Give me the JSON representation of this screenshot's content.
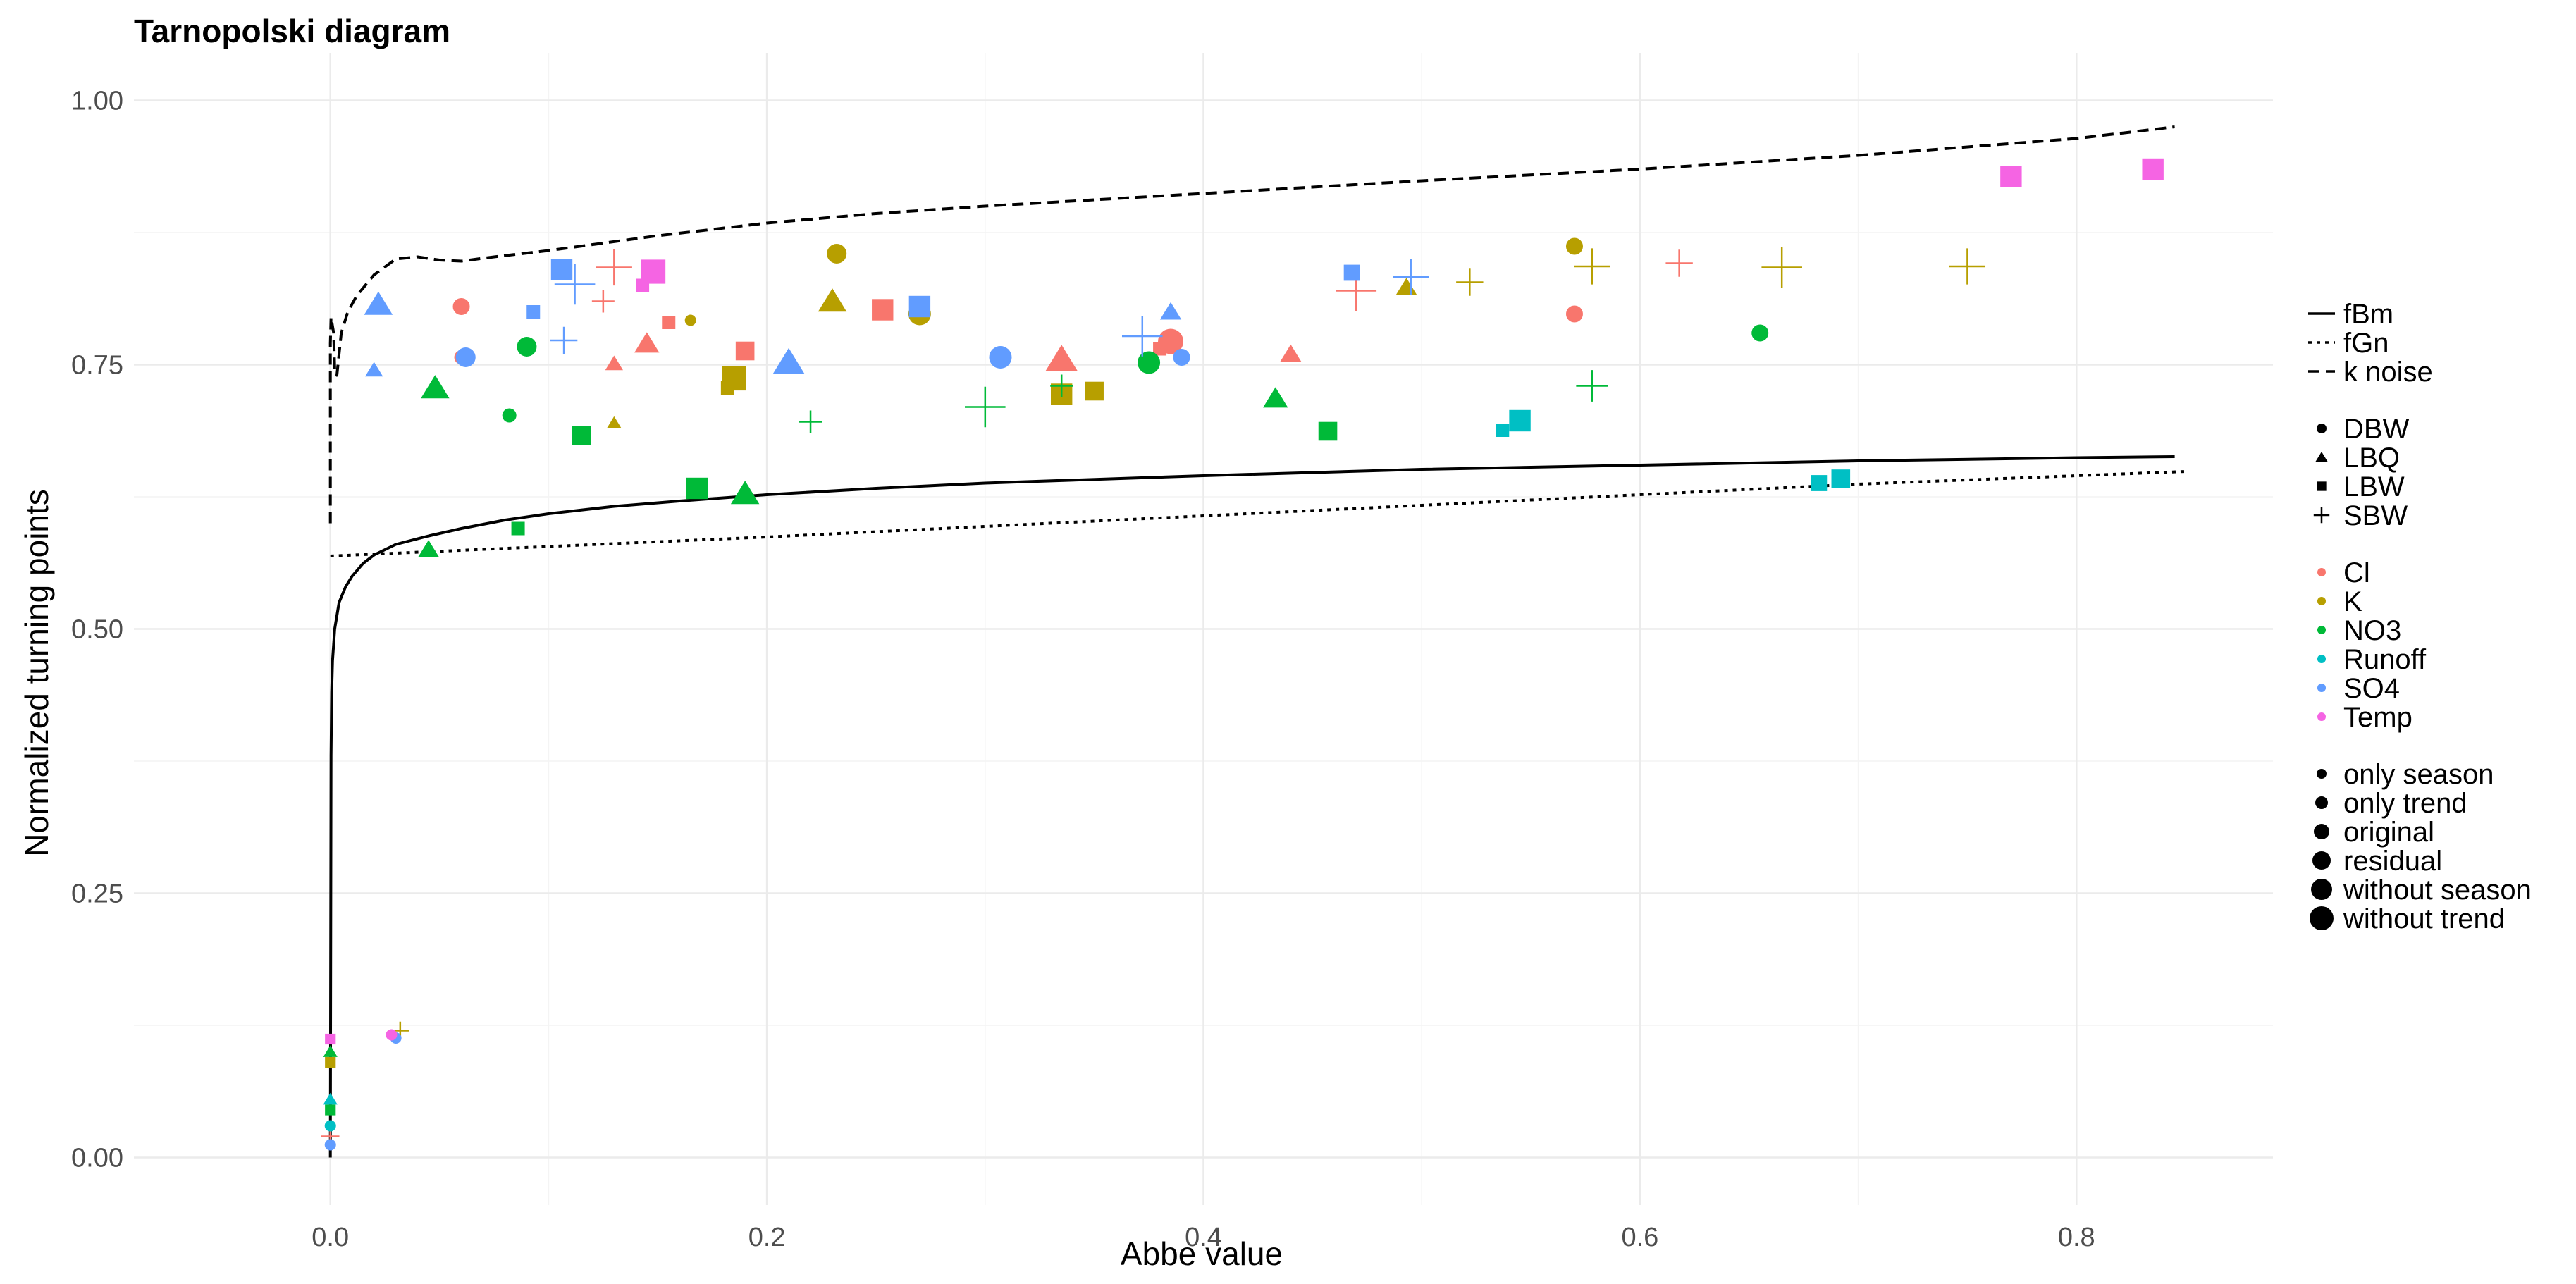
{
  "chart_data": {
    "type": "scatter",
    "title": "Tarnopolski diagram",
    "xlabel": "Abbe value",
    "ylabel": "Normalized turning points",
    "xlim": [
      -0.09,
      0.89
    ],
    "ylim": [
      -0.045,
      1.045
    ],
    "x_ticks": [
      0.0,
      0.2,
      0.4,
      0.6,
      0.8
    ],
    "x_tick_labels": [
      "0.0",
      "0.2",
      "0.4",
      "0.6",
      "0.8"
    ],
    "y_ticks": [
      0.0,
      0.25,
      0.5,
      0.75,
      1.0
    ],
    "y_tick_labels": [
      "0.00",
      "0.25",
      "0.50",
      "0.75",
      "1.00"
    ],
    "grid": true,
    "legend_position": "right",
    "colors": {
      "Cl": "#F8766D",
      "K": "#B79F00",
      "NO3": "#00BA38",
      "Runoff": "#00BFC4",
      "SO4": "#619CFF",
      "Temp": "#F564E3"
    },
    "shape_names": {
      "DBW": "circle",
      "LBQ": "triangle",
      "LBW": "square",
      "SBW": "plus"
    },
    "legend": {
      "linetype": [
        "fBm",
        "fGn",
        "k noise"
      ],
      "shape": [
        "DBW",
        "LBQ",
        "LBW",
        "SBW"
      ],
      "color": [
        "Cl",
        "K",
        "NO3",
        "Runoff",
        "SO4",
        "Temp"
      ],
      "size": [
        "only season",
        "only trend",
        "original",
        "residual",
        "without season",
        "without trend"
      ]
    },
    "reference_lines": [
      {
        "name": "fBm",
        "dash": "solid",
        "x": [
          0.0,
          0.0003,
          0.0006,
          0.001,
          0.002,
          0.004,
          0.007,
          0.01,
          0.015,
          0.02,
          0.03,
          0.045,
          0.06,
          0.08,
          0.1,
          0.13,
          0.16,
          0.2,
          0.25,
          0.3,
          0.4,
          0.5,
          0.6,
          0.7,
          0.8,
          0.845
        ],
        "y": [
          0.0,
          0.38,
          0.44,
          0.47,
          0.5,
          0.525,
          0.54,
          0.55,
          0.562,
          0.57,
          0.58,
          0.588,
          0.595,
          0.603,
          0.609,
          0.616,
          0.621,
          0.627,
          0.633,
          0.638,
          0.645,
          0.651,
          0.655,
          0.659,
          0.662,
          0.663
        ]
      },
      {
        "name": "fGn",
        "dash": "dotted",
        "x": [
          0.0,
          0.1,
          0.2,
          0.3,
          0.4,
          0.5,
          0.6,
          0.7,
          0.8,
          0.85
        ],
        "y": [
          0.569,
          0.578,
          0.587,
          0.597,
          0.607,
          0.617,
          0.627,
          0.637,
          0.645,
          0.649
        ]
      },
      {
        "name": "k noise",
        "dash": "dashed",
        "x": [
          0.0,
          0.0,
          0.0003,
          0.0015,
          0.002,
          0.003,
          0.005,
          0.008,
          0.012,
          0.02,
          0.03,
          0.04,
          0.05,
          0.06,
          0.075,
          0.1,
          0.15,
          0.2,
          0.25,
          0.3,
          0.4,
          0.5,
          0.6,
          0.7,
          0.8,
          0.845
        ],
        "y": [
          0.6,
          0.77,
          0.795,
          0.78,
          0.745,
          0.74,
          0.78,
          0.8,
          0.815,
          0.835,
          0.85,
          0.852,
          0.849,
          0.848,
          0.852,
          0.858,
          0.872,
          0.884,
          0.893,
          0.9,
          0.912,
          0.924,
          0.935,
          0.948,
          0.964,
          0.975
        ]
      }
    ],
    "series": [
      {
        "name": "Cl",
        "color": "#F8766D",
        "points": [
          {
            "x": 0.06,
            "y": 0.805,
            "shape": "DBW",
            "size": "original"
          },
          {
            "x": 0.06,
            "y": 0.757,
            "shape": "DBW",
            "size": "only trend"
          },
          {
            "x": 0.13,
            "y": 0.751,
            "shape": "LBQ",
            "size": "only trend"
          },
          {
            "x": 0.145,
            "y": 0.77,
            "shape": "LBQ",
            "size": "residual"
          },
          {
            "x": 0.155,
            "y": 0.79,
            "shape": "LBW",
            "size": "only trend"
          },
          {
            "x": 0.19,
            "y": 0.763,
            "shape": "LBW",
            "size": "residual"
          },
          {
            "x": 0.125,
            "y": 0.81,
            "shape": "SBW",
            "size": "only trend"
          },
          {
            "x": 0.13,
            "y": 0.842,
            "shape": "SBW",
            "size": "without season"
          },
          {
            "x": 0.253,
            "y": 0.802,
            "shape": "LBW",
            "size": "without season"
          },
          {
            "x": 0.335,
            "y": 0.755,
            "shape": "LBQ",
            "size": "without trend"
          },
          {
            "x": 0.38,
            "y": 0.765,
            "shape": "LBW",
            "size": "only trend"
          },
          {
            "x": 0.385,
            "y": 0.772,
            "shape": "DBW",
            "size": "without trend"
          },
          {
            "x": 0.44,
            "y": 0.76,
            "shape": "LBQ",
            "size": "original"
          },
          {
            "x": 0.47,
            "y": 0.82,
            "shape": "SBW",
            "size": "without trend"
          },
          {
            "x": 0.57,
            "y": 0.798,
            "shape": "DBW",
            "size": "original"
          },
          {
            "x": 0.618,
            "y": 0.846,
            "shape": "SBW",
            "size": "original"
          },
          {
            "x": 0.0,
            "y": 0.02,
            "shape": "SBW",
            "size": "only season"
          }
        ]
      },
      {
        "name": "K",
        "color": "#B79F00",
        "points": [
          {
            "x": 0.165,
            "y": 0.792,
            "shape": "DBW",
            "size": "only season"
          },
          {
            "x": 0.13,
            "y": 0.695,
            "shape": "LBQ",
            "size": "only season"
          },
          {
            "x": 0.182,
            "y": 0.728,
            "shape": "LBW",
            "size": "only trend"
          },
          {
            "x": 0.185,
            "y": 0.737,
            "shape": "LBW",
            "size": "without trend"
          },
          {
            "x": 0.232,
            "y": 0.855,
            "shape": "DBW",
            "size": "residual"
          },
          {
            "x": 0.23,
            "y": 0.81,
            "shape": "LBQ",
            "size": "without season"
          },
          {
            "x": 0.27,
            "y": 0.798,
            "shape": "DBW",
            "size": "without season"
          },
          {
            "x": 0.335,
            "y": 0.722,
            "shape": "LBW",
            "size": "without season"
          },
          {
            "x": 0.35,
            "y": 0.725,
            "shape": "LBW",
            "size": "residual"
          },
          {
            "x": 0.493,
            "y": 0.823,
            "shape": "LBQ",
            "size": "original"
          },
          {
            "x": 0.522,
            "y": 0.828,
            "shape": "SBW",
            "size": "original"
          },
          {
            "x": 0.57,
            "y": 0.862,
            "shape": "DBW",
            "size": "original"
          },
          {
            "x": 0.578,
            "y": 0.843,
            "shape": "SBW",
            "size": "without season"
          },
          {
            "x": 0.665,
            "y": 0.842,
            "shape": "SBW",
            "size": "without trend"
          },
          {
            "x": 0.75,
            "y": 0.843,
            "shape": "SBW",
            "size": "without season"
          },
          {
            "x": 0.0,
            "y": 0.09,
            "shape": "LBW",
            "size": "only season"
          },
          {
            "x": 0.032,
            "y": 0.12,
            "shape": "SBW",
            "size": "only season"
          }
        ]
      },
      {
        "name": "NO3",
        "color": "#00BA38",
        "points": [
          {
            "x": 0.048,
            "y": 0.728,
            "shape": "LBQ",
            "size": "without season"
          },
          {
            "x": 0.045,
            "y": 0.575,
            "shape": "LBQ",
            "size": "original"
          },
          {
            "x": 0.082,
            "y": 0.702,
            "shape": "DBW",
            "size": "only trend"
          },
          {
            "x": 0.09,
            "y": 0.767,
            "shape": "DBW",
            "size": "residual"
          },
          {
            "x": 0.086,
            "y": 0.595,
            "shape": "LBW",
            "size": "only trend"
          },
          {
            "x": 0.115,
            "y": 0.683,
            "shape": "LBW",
            "size": "residual"
          },
          {
            "x": 0.168,
            "y": 0.633,
            "shape": "LBW",
            "size": "without season"
          },
          {
            "x": 0.19,
            "y": 0.628,
            "shape": "LBQ",
            "size": "without season"
          },
          {
            "x": 0.22,
            "y": 0.696,
            "shape": "SBW",
            "size": "only trend"
          },
          {
            "x": 0.3,
            "y": 0.71,
            "shape": "SBW",
            "size": "without trend"
          },
          {
            "x": 0.335,
            "y": 0.73,
            "shape": "SBW",
            "size": "only trend"
          },
          {
            "x": 0.375,
            "y": 0.752,
            "shape": "DBW",
            "size": "without season"
          },
          {
            "x": 0.433,
            "y": 0.718,
            "shape": "LBQ",
            "size": "residual"
          },
          {
            "x": 0.457,
            "y": 0.687,
            "shape": "LBW",
            "size": "residual"
          },
          {
            "x": 0.578,
            "y": 0.73,
            "shape": "SBW",
            "size": "residual"
          },
          {
            "x": 0.655,
            "y": 0.78,
            "shape": "DBW",
            "size": "original"
          },
          {
            "x": 0.0,
            "y": 0.1,
            "shape": "LBQ",
            "size": "only season"
          },
          {
            "x": 0.0,
            "y": 0.045,
            "shape": "LBW",
            "size": "only season"
          }
        ]
      },
      {
        "name": "Runoff",
        "color": "#00BFC4",
        "points": [
          {
            "x": 0.537,
            "y": 0.688,
            "shape": "LBW",
            "size": "only trend"
          },
          {
            "x": 0.545,
            "y": 0.697,
            "shape": "LBW",
            "size": "without season"
          },
          {
            "x": 0.682,
            "y": 0.638,
            "shape": "LBW",
            "size": "original"
          },
          {
            "x": 0.692,
            "y": 0.642,
            "shape": "LBW",
            "size": "residual"
          },
          {
            "x": 0.0,
            "y": 0.055,
            "shape": "LBQ",
            "size": "only season"
          },
          {
            "x": 0.0,
            "y": 0.03,
            "shape": "DBW",
            "size": "only season"
          }
        ]
      },
      {
        "name": "SO4",
        "color": "#619CFF",
        "points": [
          {
            "x": 0.022,
            "y": 0.807,
            "shape": "LBQ",
            "size": "without season"
          },
          {
            "x": 0.02,
            "y": 0.745,
            "shape": "LBQ",
            "size": "only trend"
          },
          {
            "x": 0.062,
            "y": 0.757,
            "shape": "DBW",
            "size": "residual"
          },
          {
            "x": 0.093,
            "y": 0.8,
            "shape": "LBW",
            "size": "only trend"
          },
          {
            "x": 0.106,
            "y": 0.84,
            "shape": "LBW",
            "size": "without season"
          },
          {
            "x": 0.107,
            "y": 0.773,
            "shape": "SBW",
            "size": "original"
          },
          {
            "x": 0.112,
            "y": 0.826,
            "shape": "SBW",
            "size": "without trend"
          },
          {
            "x": 0.21,
            "y": 0.752,
            "shape": "LBQ",
            "size": "without trend"
          },
          {
            "x": 0.27,
            "y": 0.805,
            "shape": "LBW",
            "size": "without season"
          },
          {
            "x": 0.307,
            "y": 0.757,
            "shape": "DBW",
            "size": "without season"
          },
          {
            "x": 0.372,
            "y": 0.777,
            "shape": "SBW",
            "size": "without trend"
          },
          {
            "x": 0.385,
            "y": 0.8,
            "shape": "LBQ",
            "size": "original"
          },
          {
            "x": 0.39,
            "y": 0.757,
            "shape": "DBW",
            "size": "original"
          },
          {
            "x": 0.468,
            "y": 0.837,
            "shape": "LBW",
            "size": "original"
          },
          {
            "x": 0.495,
            "y": 0.833,
            "shape": "SBW",
            "size": "without season"
          },
          {
            "x": 0.0,
            "y": 0.012,
            "shape": "DBW",
            "size": "only season"
          },
          {
            "x": 0.03,
            "y": 0.113,
            "shape": "DBW",
            "size": "only season"
          }
        ]
      },
      {
        "name": "Temp",
        "color": "#F564E3",
        "points": [
          {
            "x": 0.143,
            "y": 0.825,
            "shape": "LBW",
            "size": "only trend"
          },
          {
            "x": 0.148,
            "y": 0.838,
            "shape": "LBW",
            "size": "without trend"
          },
          {
            "x": 0.77,
            "y": 0.928,
            "shape": "LBW",
            "size": "without season"
          },
          {
            "x": 0.835,
            "y": 0.935,
            "shape": "LBW",
            "size": "without season"
          },
          {
            "x": 0.0,
            "y": 0.112,
            "shape": "LBW",
            "size": "only season"
          },
          {
            "x": 0.028,
            "y": 0.116,
            "shape": "DBW",
            "size": "only season"
          }
        ]
      }
    ]
  }
}
